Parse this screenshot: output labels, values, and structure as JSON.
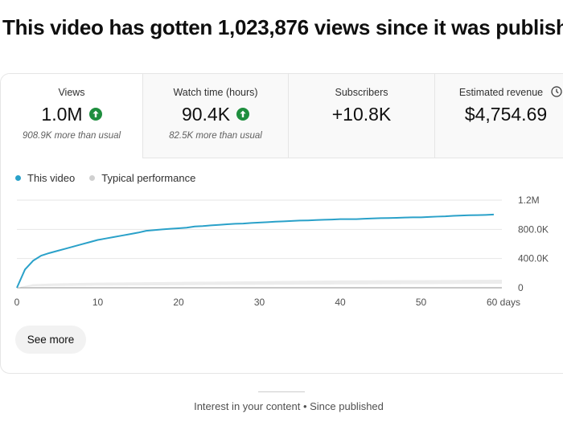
{
  "headline": "This video has gotten 1,023,876 views since it was publishe",
  "metrics": [
    {
      "label": "Views",
      "value": "1.0M",
      "sub": "908.9K more than usual",
      "trend_icon": "arrow-up-circle-icon"
    },
    {
      "label": "Watch time (hours)",
      "value": "90.4K",
      "sub": "82.5K more than usual",
      "trend_icon": "arrow-up-circle-icon"
    },
    {
      "label": "Subscribers",
      "value": "+10.8K",
      "sub": ""
    },
    {
      "label": "Estimated revenue",
      "value": "$4,754.69",
      "sub": "",
      "info_icon": "clock-icon"
    }
  ],
  "colors": {
    "accent": "#2aa1c9",
    "typical": "#d9d9d9",
    "trend": "#1e8e3e"
  },
  "legend": {
    "this_video": "This video",
    "typical": "Typical performance"
  },
  "chart_data": {
    "type": "line",
    "x_ticks": [
      "0",
      "10",
      "20",
      "30",
      "40",
      "50",
      "60 days"
    ],
    "y_ticks": [
      "1.2M",
      "800.0K",
      "400.0K",
      "0"
    ],
    "xlim": [
      0,
      60
    ],
    "ylim": [
      0,
      1200000
    ],
    "grid": true,
    "series": [
      {
        "name": "This video",
        "x": [
          0,
          1,
          2,
          3,
          4,
          5,
          6,
          7,
          8,
          9,
          10,
          11,
          12,
          13,
          14,
          15,
          16,
          17,
          18,
          19,
          20,
          21,
          22,
          23,
          24,
          25,
          26,
          27,
          28,
          29,
          30,
          31,
          32,
          33,
          34,
          35,
          36,
          37,
          38,
          39,
          40,
          41,
          42,
          43,
          44,
          45,
          46,
          47,
          48,
          49,
          50,
          51,
          52,
          53,
          54,
          55,
          56,
          57,
          58,
          59
        ],
        "y": [
          0,
          250000,
          370000,
          440000,
          475000,
          505000,
          535000,
          565000,
          595000,
          625000,
          655000,
          675000,
          695000,
          715000,
          735000,
          755000,
          780000,
          790000,
          800000,
          808000,
          815000,
          823000,
          840000,
          845000,
          855000,
          862000,
          870000,
          876000,
          880000,
          888000,
          893000,
          898000,
          905000,
          910000,
          915000,
          920000,
          922000,
          927000,
          932000,
          935000,
          940000,
          940000,
          940000,
          945000,
          950000,
          953000,
          955000,
          958000,
          962000,
          965000,
          965000,
          970000,
          975000,
          978000,
          985000,
          990000,
          993000,
          995000,
          998000,
          1003000
        ]
      },
      {
        "name": "Typical performance",
        "x": [
          0,
          2,
          5,
          10,
          20,
          30,
          40,
          50,
          60
        ],
        "y_lower": [
          0,
          20000,
          25000,
          30000,
          35000,
          40000,
          45000,
          50000,
          55000
        ],
        "y_upper": [
          0,
          50000,
          60000,
          70000,
          80000,
          90000,
          100000,
          105000,
          110000
        ]
      }
    ]
  },
  "see_more": "See more",
  "footer": "Interest in your content • Since published"
}
